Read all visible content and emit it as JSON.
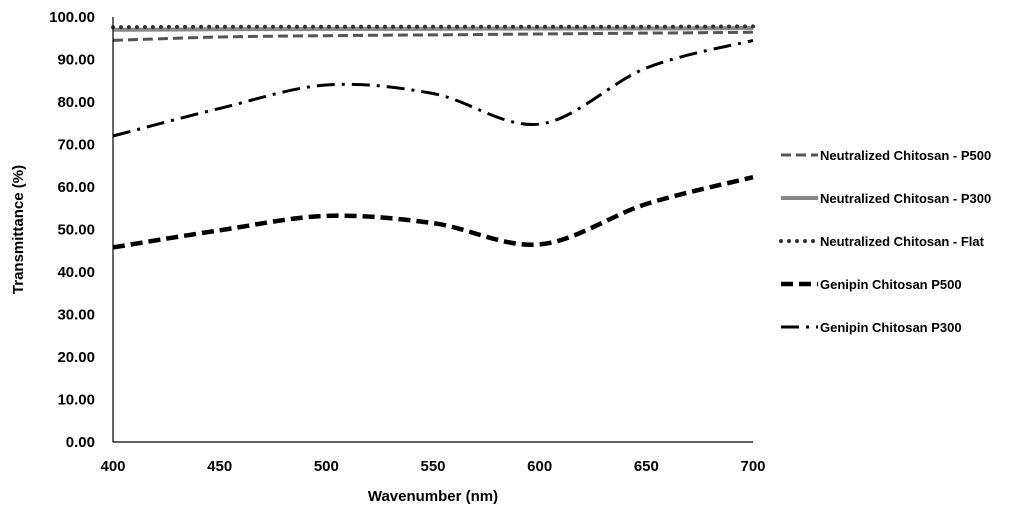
{
  "chart_data": {
    "type": "line",
    "title": "",
    "xlabel": "Wavenumber (nm)",
    "ylabel": "Transmittance (%)",
    "xlim": [
      400,
      700
    ],
    "ylim": [
      0,
      100
    ],
    "x_ticks": [
      "400",
      "450",
      "500",
      "550",
      "600",
      "650",
      "700"
    ],
    "y_ticks": [
      "0.00",
      "10.00",
      "20.00",
      "30.00",
      "40.00",
      "50.00",
      "60.00",
      "70.00",
      "80.00",
      "90.00",
      "100.00"
    ],
    "grid": false,
    "legend_position": "right",
    "x": [
      400,
      450,
      500,
      550,
      600,
      650,
      700
    ],
    "series": [
      {
        "name": "Neutralized Chitosan - P500",
        "color": "#555555",
        "style": "dashed",
        "values": [
          94.5,
          95.3,
          95.6,
          95.8,
          96.0,
          96.2,
          96.4
        ]
      },
      {
        "name": "Neutralized Chitosan - P300",
        "color": "#888888",
        "style": "solid",
        "values": [
          97.0,
          97.1,
          97.2,
          97.2,
          97.3,
          97.3,
          97.4
        ]
      },
      {
        "name": "Neutralized Chitosan - Flat",
        "color": "#333333",
        "style": "dotted",
        "values": [
          97.6,
          97.7,
          97.7,
          97.7,
          97.7,
          97.7,
          97.8
        ]
      },
      {
        "name": "Genipin Chitosan P500",
        "color": "#000000",
        "style": "bold-dashed",
        "values": [
          45.8,
          49.8,
          53.2,
          51.5,
          46.5,
          56.0,
          62.3
        ]
      },
      {
        "name": "Genipin Chitosan P300",
        "color": "#000000",
        "style": "dash-dot",
        "values": [
          72.0,
          78.5,
          84.0,
          82.0,
          74.8,
          88.0,
          94.5
        ]
      }
    ]
  }
}
